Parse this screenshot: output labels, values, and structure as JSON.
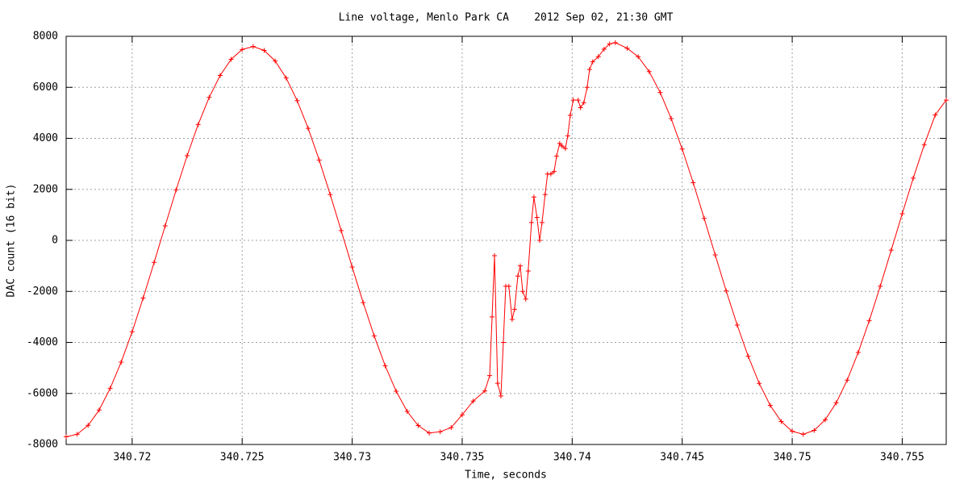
{
  "chart_data": {
    "type": "line",
    "title": "Line voltage, Menlo Park CA    2012 Sep 02, 21:30 GMT",
    "xlabel": "Time, seconds",
    "ylabel": "DAC count (16 bit)",
    "xlim": [
      340.717,
      340.757
    ],
    "ylim": [
      -8000,
      8000
    ],
    "xticks": [
      340.72,
      340.725,
      340.73,
      340.735,
      340.74,
      340.745,
      340.75,
      340.755
    ],
    "yticks": [
      -8000,
      -6000,
      -4000,
      -2000,
      0,
      2000,
      4000,
      6000,
      8000
    ],
    "grid": true,
    "x": [
      340.717,
      340.7175,
      340.718,
      340.7185,
      340.719,
      340.7195,
      340.72,
      340.7205,
      340.721,
      340.7215,
      340.722,
      340.7225,
      340.723,
      340.7235,
      340.724,
      340.7245,
      340.725,
      340.7255,
      340.726,
      340.7265,
      340.727,
      340.7275,
      340.728,
      340.7285,
      340.729,
      340.7295,
      340.73,
      340.7305,
      340.731,
      340.7315,
      340.732,
      340.7325,
      340.733,
      340.7335,
      340.734,
      340.7345,
      340.735,
      340.7355,
      340.73603,
      340.73625,
      340.73636,
      340.73647,
      340.73661,
      340.73676,
      340.73687,
      340.73698,
      340.73712,
      340.73727,
      340.73738,
      340.73753,
      340.73764,
      340.73775,
      340.73789,
      340.738,
      340.73815,
      340.73826,
      340.7384,
      340.73852,
      340.73863,
      340.73877,
      340.73888,
      340.73903,
      340.73918,
      340.73929,
      340.73943,
      340.73954,
      340.73969,
      340.7398,
      340.73991,
      340.74005,
      340.74027,
      340.74038,
      340.74053,
      340.74068,
      340.74079,
      340.74093,
      340.74119,
      340.74145,
      340.7417,
      340.74196,
      340.7425,
      340.743,
      340.7435,
      340.744,
      340.7445,
      340.745,
      340.7455,
      340.746,
      340.7465,
      340.747,
      340.7475,
      340.748,
      340.7485,
      340.749,
      340.7495,
      340.75,
      340.7505,
      340.751,
      340.7515,
      340.752,
      340.7525,
      340.753,
      340.7535,
      340.754,
      340.7545,
      340.755,
      340.7555,
      340.756,
      340.7565,
      340.757
    ],
    "series": [
      {
        "color": "#ff0000",
        "values": [
          -7700,
          -7600,
          -7250,
          -6650,
          -5800,
          -4773,
          -3580,
          -2260,
          -860,
          570,
          1980,
          3320,
          4542,
          5603,
          6466,
          7100,
          7482,
          7600,
          7447,
          7032,
          6366,
          5477,
          4392,
          3152,
          1800,
          385,
          -1045,
          -2437,
          -3742,
          -4916,
          -5914,
          -6704,
          -7257,
          -7551,
          -7500,
          -7338,
          -6837,
          -6300,
          -5900,
          -5300,
          -3000,
          -600,
          -5600,
          -6100,
          -4000,
          -1800,
          -1800,
          -3100,
          -2700,
          -1400,
          -1000,
          -2000,
          -2300,
          -1200,
          700,
          1700,
          900,
          0,
          700,
          1800,
          2600,
          2600,
          2700,
          3300,
          3800,
          3700,
          3600,
          4100,
          4900,
          5500,
          5500,
          5200,
          5400,
          6000,
          6700,
          7000,
          7200,
          7500,
          7700,
          7750,
          7530,
          7200,
          6615,
          5797,
          4773,
          3580,
          2260,
          860,
          -570,
          -1980,
          -3320,
          -4542,
          -5603,
          -6466,
          -7100,
          -7482,
          -7600,
          -7447,
          -7032,
          -6366,
          -5477,
          -4392,
          -3152,
          -1800,
          -385,
          1045,
          2437,
          3742,
          4916,
          5500
        ]
      }
    ]
  }
}
